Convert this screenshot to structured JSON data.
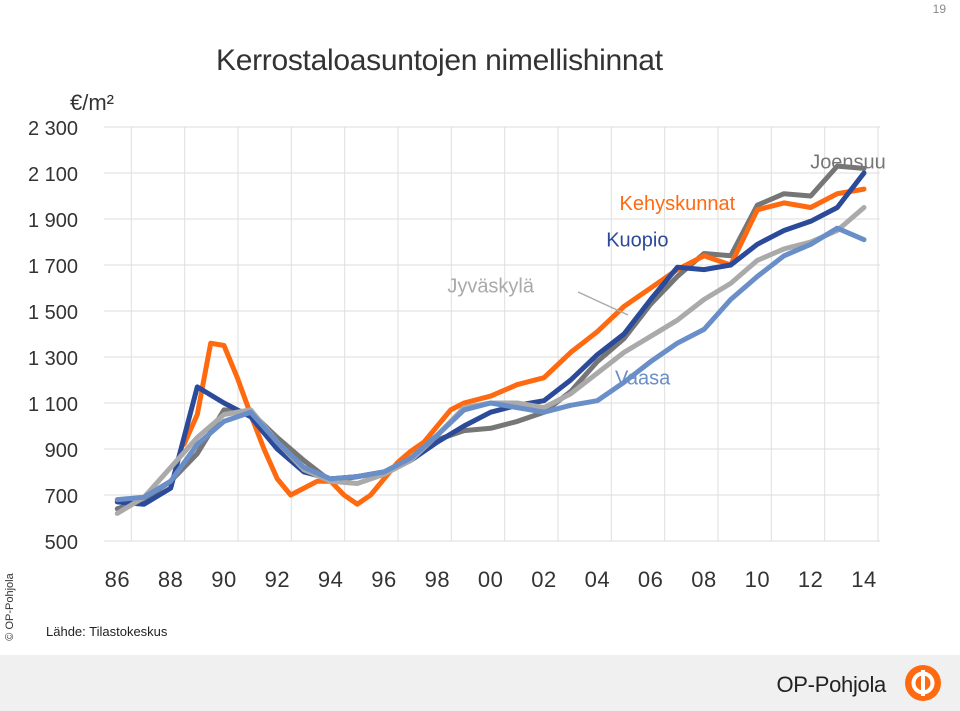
{
  "page": {
    "number": "19"
  },
  "title": "Kerrostaloasuntojen nimellishinnat",
  "unit": "€/m²",
  "source": "Lähde: Tilastokeskus",
  "copyright": "© OP-Pohjola",
  "brand": {
    "name": "OP-Pohjola",
    "logo": "op-logo-icon",
    "accent": "#ff6a10"
  },
  "chart_data": {
    "type": "line",
    "title": "Kerrostaloasuntojen nimellishinnat",
    "ylabel": "€/m²",
    "xlabel": "",
    "ylim": [
      500,
      2300
    ],
    "xlim": [
      1985.5,
      2014.6
    ],
    "yticks": [
      "2 300",
      "2 100",
      "1 900",
      "1 700",
      "1 500",
      "1 300",
      "1 100",
      "900",
      "700",
      "500"
    ],
    "ytick_values": [
      2300,
      2100,
      1900,
      1700,
      1500,
      1300,
      1100,
      900,
      700,
      500
    ],
    "xticks": [
      "86",
      "88",
      "90",
      "92",
      "94",
      "96",
      "98",
      "00",
      "02",
      "04",
      "06",
      "08",
      "10",
      "12",
      "14"
    ],
    "xtick_values": [
      1986,
      1988,
      1990,
      1992,
      1994,
      1996,
      1998,
      2000,
      2002,
      2004,
      2006,
      2008,
      2010,
      2012,
      2014
    ],
    "grid": true,
    "legend": "inline labels",
    "series": [
      {
        "name": "Joensuu",
        "color": "#767676",
        "x": [
          1986,
          1987,
          1988,
          1989,
          1990,
          1991,
          1992,
          1993,
          1994,
          1995,
          1996,
          1997,
          1998,
          1999,
          2000,
          2001,
          2002,
          2003,
          2004,
          2005,
          2006,
          2007,
          2008,
          2009,
          2010,
          2011,
          2012,
          2013,
          2014
        ],
        "y": [
          640,
          680,
          760,
          880,
          1070,
          1060,
          950,
          850,
          760,
          780,
          800,
          860,
          940,
          980,
          990,
          1020,
          1060,
          1150,
          1280,
          1380,
          1530,
          1650,
          1750,
          1740,
          1960,
          2010,
          2000,
          2130,
          2120
        ]
      },
      {
        "name": "Kehyskunnat",
        "color": "#ff6a10",
        "x": [
          1988.5,
          1989,
          1989.5,
          1990,
          1990.5,
          1991,
          1991.5,
          1992,
          1992.5,
          1993,
          1993.5,
          1994,
          1994.5,
          1995,
          1995.5,
          1996,
          1996.5,
          1997,
          1997.5,
          1998,
          1998.5,
          1999,
          2000,
          2001,
          2002,
          2003,
          2004,
          2005,
          2006,
          2007,
          2008,
          2009,
          2010,
          2011,
          2012,
          2013,
          2014
        ],
        "y": [
          920,
          1050,
          1360,
          1350,
          1210,
          1050,
          900,
          770,
          700,
          730,
          760,
          760,
          700,
          660,
          700,
          770,
          840,
          890,
          930,
          1000,
          1070,
          1100,
          1130,
          1180,
          1210,
          1320,
          1410,
          1520,
          1600,
          1680,
          1740,
          1700,
          1940,
          1970,
          1950,
          2010,
          2030
        ]
      },
      {
        "name": "Kuopio",
        "color": "#2b4a9a",
        "x": [
          1986,
          1987,
          1988,
          1989,
          1990,
          1991,
          1992,
          1993,
          1994,
          1995,
          1996,
          1997,
          1998,
          1999,
          2000,
          2001,
          2002,
          2003,
          2004,
          2005,
          2006,
          2007,
          2008,
          2009,
          2010,
          2011,
          2012,
          2013,
          2014
        ],
        "y": [
          670,
          660,
          730,
          1170,
          1100,
          1040,
          900,
          800,
          770,
          780,
          800,
          850,
          930,
          1000,
          1060,
          1090,
          1110,
          1200,
          1310,
          1400,
          1550,
          1690,
          1680,
          1700,
          1790,
          1850,
          1890,
          1950,
          2100
        ]
      },
      {
        "name": "Jyväskylä",
        "color": "#aaaaaa",
        "x": [
          1986,
          1987,
          1988,
          1989,
          1990,
          1991,
          1992,
          1993,
          1994,
          1995,
          1996,
          1997,
          1998,
          1999,
          2000,
          2001,
          2002,
          2003,
          2004,
          2005,
          2006,
          2007,
          2008,
          2009,
          2010,
          2011,
          2012,
          2013,
          2014
        ],
        "y": [
          620,
          690,
          820,
          950,
          1050,
          1070,
          930,
          810,
          760,
          750,
          790,
          850,
          960,
          1080,
          1100,
          1100,
          1080,
          1140,
          1230,
          1320,
          1390,
          1460,
          1550,
          1620,
          1720,
          1770,
          1800,
          1850,
          1950
        ]
      },
      {
        "name": "Vaasa",
        "color": "#6a8fc8",
        "x": [
          1986,
          1987,
          1988,
          1989,
          1990,
          1991,
          1992,
          1993,
          1994,
          1995,
          1996,
          1997,
          1998,
          1999,
          2000,
          2001,
          2002,
          2003,
          2004,
          2005,
          2006,
          2007,
          2008,
          2009,
          2010,
          2011,
          2012,
          2013,
          2014
        ],
        "y": [
          680,
          690,
          760,
          920,
          1020,
          1060,
          930,
          820,
          770,
          780,
          800,
          860,
          960,
          1070,
          1100,
          1080,
          1060,
          1090,
          1110,
          1190,
          1280,
          1360,
          1420,
          1550,
          1650,
          1740,
          1790,
          1860,
          1810
        ]
      }
    ],
    "annotations": [
      {
        "text": "Joensuu",
        "x": 2013.4,
        "y": 2120
      },
      {
        "text": "Kehyskunnat",
        "x": 2007.0,
        "y": 1940
      },
      {
        "text": "Kuopio",
        "x": 2005.5,
        "y": 1780
      },
      {
        "text": "Jyväskylä",
        "x": 2000.0,
        "y": 1580
      },
      {
        "text": "Vaasa",
        "x": 2005.7,
        "y": 1180
      }
    ]
  }
}
